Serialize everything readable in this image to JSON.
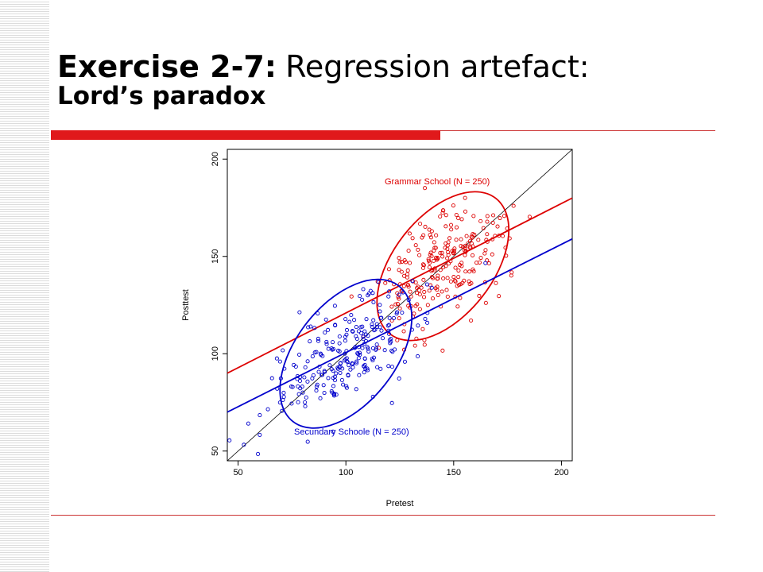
{
  "slide": {
    "title_bold": "Exercise 2-7:",
    "title_rest": "Regression artefact:",
    "subtitle": "Lord’s paradox",
    "accent_color": "#e0191b",
    "rule_color": "#cc3333"
  },
  "chart_data": {
    "type": "scatter",
    "title": "",
    "xlabel": "Pretest",
    "ylabel": "Posttest",
    "xlim": [
      45,
      205
    ],
    "ylim": [
      45,
      205
    ],
    "x_ticks": [
      50,
      100,
      150,
      200
    ],
    "y_ticks": [
      50,
      100,
      150,
      200
    ],
    "identity_line": true,
    "series": [
      {
        "name": "Grammar School (N = 250)",
        "color": "#dd0000",
        "n": 250,
        "mean": [
          145,
          145
        ],
        "ellipse": {
          "center": [
            145,
            145
          ],
          "rx": 33,
          "ry": 28,
          "cx_vs_ry_corr": 0.55
        },
        "regression": {
          "x": [
            45,
            205
          ],
          "y": [
            90,
            180
          ]
        }
      },
      {
        "name": "Secundary Schoole (N = 250)",
        "color": "#0000cc",
        "n": 250,
        "mean": [
          100,
          100
        ],
        "ellipse": {
          "center": [
            100,
            100
          ],
          "rx": 33,
          "ry": 28,
          "cx_vs_ry_corr": 0.55
        },
        "regression": {
          "x": [
            45,
            205
          ],
          "y": [
            70,
            159
          ]
        }
      }
    ],
    "line_color": "#000000"
  }
}
